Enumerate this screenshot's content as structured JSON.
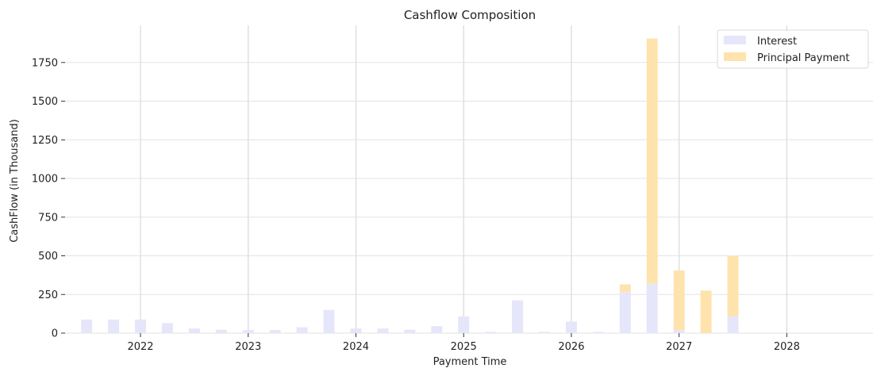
{
  "chart_data": {
    "type": "bar",
    "stacked": true,
    "title": "Cashflow Composition",
    "xlabel": "Payment Time",
    "ylabel": "CashFlow (in Thousand)",
    "x_unit": "year",
    "xlim": [
      2021.3,
      2028.8
    ],
    "ylim": [
      0,
      1990
    ],
    "x_ticks": [
      2022,
      2023,
      2024,
      2025,
      2026,
      2027,
      2028
    ],
    "x_tick_labels": [
      "2022",
      "2023",
      "2024",
      "2025",
      "2026",
      "2027",
      "2028"
    ],
    "y_ticks": [
      0,
      250,
      500,
      750,
      1000,
      1250,
      1500,
      1750
    ],
    "y_tick_labels": [
      "0",
      "250",
      "500",
      "750",
      "1000",
      "1250",
      "1500",
      "1750"
    ],
    "grid": true,
    "legend_position": "top-right",
    "x": [
      2021.5,
      2021.75,
      2022.0,
      2022.25,
      2022.5,
      2022.75,
      2023.0,
      2023.25,
      2023.5,
      2023.75,
      2024.0,
      2024.25,
      2024.5,
      2024.75,
      2025.0,
      2025.25,
      2025.5,
      2025.75,
      2026.0,
      2026.25,
      2026.5,
      2026.75,
      2027.0,
      2027.25,
      2027.5
    ],
    "series": [
      {
        "name": "Interest",
        "color": "#e6e6fa",
        "values": [
          88,
          88,
          88,
          65,
          30,
          22,
          20,
          20,
          38,
          150,
          30,
          30,
          22,
          45,
          108,
          8,
          212,
          8,
          75,
          8,
          265,
          320,
          20,
          0,
          110
        ]
      },
      {
        "name": "Principal Payment",
        "color": "#ffe3ad",
        "values": [
          0,
          0,
          0,
          0,
          0,
          0,
          0,
          0,
          0,
          0,
          0,
          0,
          0,
          0,
          0,
          0,
          0,
          0,
          0,
          0,
          50,
          1585,
          385,
          275,
          390
        ]
      }
    ]
  }
}
